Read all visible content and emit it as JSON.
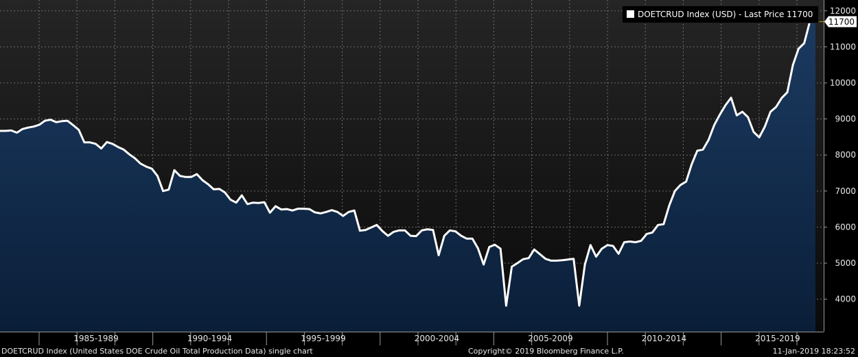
{
  "legend": {
    "label": "DOETCRUD Index (USD)  -  Last Price 11700"
  },
  "last_price_tag": "11700",
  "footer": {
    "left": "DOETCRUD Index (United States DOE Crude Oil Total Production Data) single chart",
    "center": "Copyright© 2019 Bloomberg Finance L.P.",
    "right": "11-Jan-2019 18:23:52"
  },
  "colors": {
    "line": "#ffffff",
    "area_top": "#1b3a60",
    "area_bottom": "#0a1e38",
    "background_top": "#252525",
    "background_bottom": "#0a0a0a",
    "grid": "#6e6e6e",
    "tag_background": "#ffffff",
    "tag_text": "#000000"
  },
  "chart_data": {
    "type": "area",
    "title": "",
    "xlabel": "",
    "ylabel": "",
    "x_tick_labels": [
      "1985-1989",
      "1990-1994",
      "1995-1999",
      "2000-2004",
      "2005-2009",
      "2010-2014",
      "2015-2019"
    ],
    "y_ticks": [
      4000,
      5000,
      6000,
      7000,
      8000,
      9000,
      10000,
      11000,
      12000
    ],
    "ylim": [
      3100,
      12300
    ],
    "grid": true,
    "legend_position": "top-right",
    "y_axis_side": "right",
    "series": [
      {
        "name": "DOETCRUD Index (USD)",
        "values": [
          8670,
          8670,
          8680,
          8620,
          8720,
          8760,
          8790,
          8840,
          8950,
          8980,
          8910,
          8940,
          8950,
          8830,
          8700,
          8350,
          8350,
          8310,
          8180,
          8360,
          8310,
          8220,
          8150,
          8020,
          7910,
          7760,
          7680,
          7620,
          7420,
          7000,
          7040,
          7580,
          7420,
          7390,
          7390,
          7470,
          7300,
          7190,
          7050,
          7060,
          6960,
          6760,
          6680,
          6880,
          6640,
          6680,
          6670,
          6690,
          6400,
          6580,
          6490,
          6500,
          6460,
          6510,
          6510,
          6500,
          6410,
          6380,
          6420,
          6470,
          6420,
          6310,
          6420,
          6460,
          5900,
          5920,
          5990,
          6060,
          5890,
          5760,
          5870,
          5910,
          5910,
          5760,
          5750,
          5910,
          5940,
          5920,
          5220,
          5760,
          5910,
          5880,
          5760,
          5680,
          5680,
          5410,
          4960,
          5450,
          5510,
          5400,
          3820,
          4900,
          5000,
          5110,
          5140,
          5380,
          5250,
          5120,
          5070,
          5070,
          5080,
          5100,
          5120,
          3820,
          4960,
          5500,
          5180,
          5400,
          5500,
          5480,
          5260,
          5580,
          5600,
          5580,
          5620,
          5810,
          5850,
          6060,
          6080,
          6600,
          7000,
          7170,
          7260,
          7750,
          8120,
          8150,
          8420,
          8830,
          9120,
          9380,
          9590,
          9100,
          9200,
          9050,
          8640,
          8490,
          8790,
          9200,
          9330,
          9580,
          9740,
          10500,
          10950,
          11100,
          11700,
          11700
        ]
      }
    ]
  }
}
